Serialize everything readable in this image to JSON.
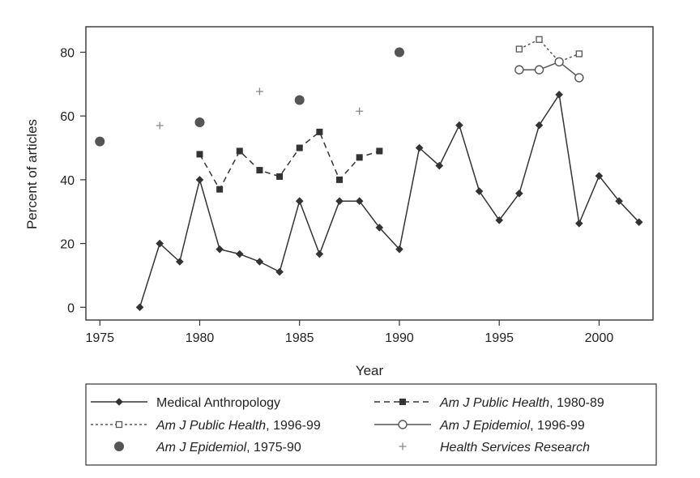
{
  "chart_data": {
    "type": "line",
    "xlabel": "Year",
    "ylabel": "Percent of articles",
    "xlim": [
      1974.3,
      2002.7
    ],
    "ylim": [
      -4,
      88
    ],
    "x_ticks": [
      1975,
      1980,
      1985,
      1990,
      1995,
      2000
    ],
    "x_tick_labels": [
      "1975",
      "1980",
      "1985",
      "1990",
      "1995",
      "2000"
    ],
    "y_ticks": [
      0,
      20,
      40,
      60,
      80
    ],
    "y_tick_labels": [
      "0",
      "20",
      "40",
      "60",
      "80"
    ],
    "grid": false,
    "legend_position": "bottom",
    "series": [
      {
        "key": "med-anth",
        "name": "Medical Anthropology",
        "italic_part": "",
        "style": "solid",
        "marker": "diamond",
        "color": "#333333",
        "x": [
          1977,
          1978,
          1979,
          1980,
          1981,
          1982,
          1983,
          1984,
          1985,
          1986,
          1987,
          1988,
          1989,
          1990,
          1991,
          1992,
          1993,
          1994,
          1995,
          1996,
          1997,
          1998,
          1999,
          2000,
          2001,
          2002
        ],
        "y": [
          0,
          20,
          14.3,
          40,
          18.2,
          16.7,
          14.3,
          11.1,
          33.3,
          16.7,
          33.3,
          33.3,
          25,
          18.2,
          50,
          44.4,
          57.1,
          36.4,
          27.3,
          35.7,
          57.1,
          66.7,
          26.3,
          41.2,
          33.3,
          26.7
        ]
      },
      {
        "key": "ajph-80",
        "name": "Am J Public Health, 1980-89",
        "italic_part": "Am J Public Health",
        "rest_part": ", 1980-89",
        "style": "dashed",
        "marker": "square-filled",
        "color": "#333333",
        "x": [
          1980,
          1981,
          1982,
          1983,
          1984,
          1985,
          1986,
          1987,
          1988,
          1989
        ],
        "y": [
          48,
          37,
          49,
          43,
          41,
          50,
          55,
          40,
          47,
          49
        ]
      },
      {
        "key": "ajph-96",
        "name": "Am J Public Health, 1996-99",
        "italic_part": "Am J Public Health",
        "rest_part": ", 1996-99",
        "style": "dotted",
        "marker": "square-hollow",
        "color": "#555555",
        "x": [
          1996,
          1997,
          1998,
          1999
        ],
        "y": [
          81,
          84,
          77,
          79.5
        ]
      },
      {
        "key": "aje-96",
        "name": "Am J Epidemiol, 1996-99",
        "italic_part": "Am J Epidemiol",
        "rest_part": ", 1996-99",
        "style": "solid",
        "marker": "circle-hollow",
        "color": "#555555",
        "x": [
          1996,
          1997,
          1998,
          1999
        ],
        "y": [
          74.5,
          74.5,
          77,
          72
        ]
      },
      {
        "key": "aje-75",
        "name": "Am J Epidemiol, 1975-90",
        "italic_part": "Am J Epidemiol",
        "rest_part": ", 1975-90",
        "style": "none",
        "marker": "circle-filled",
        "color": "#555555",
        "x": [
          1975,
          1980,
          1985,
          1990
        ],
        "y": [
          52,
          58,
          65,
          80
        ]
      },
      {
        "key": "hsr",
        "name": "Health Services Research",
        "italic_part": "Health Services Research",
        "rest_part": "",
        "style": "none",
        "marker": "plus",
        "color": "#888888",
        "x": [
          1978,
          1983,
          1988
        ],
        "y": [
          57,
          67.7,
          61.5
        ]
      }
    ],
    "legend_order": [
      "med-anth",
      "ajph-80",
      "ajph-96",
      "aje-96",
      "aje-75",
      "hsr"
    ]
  }
}
